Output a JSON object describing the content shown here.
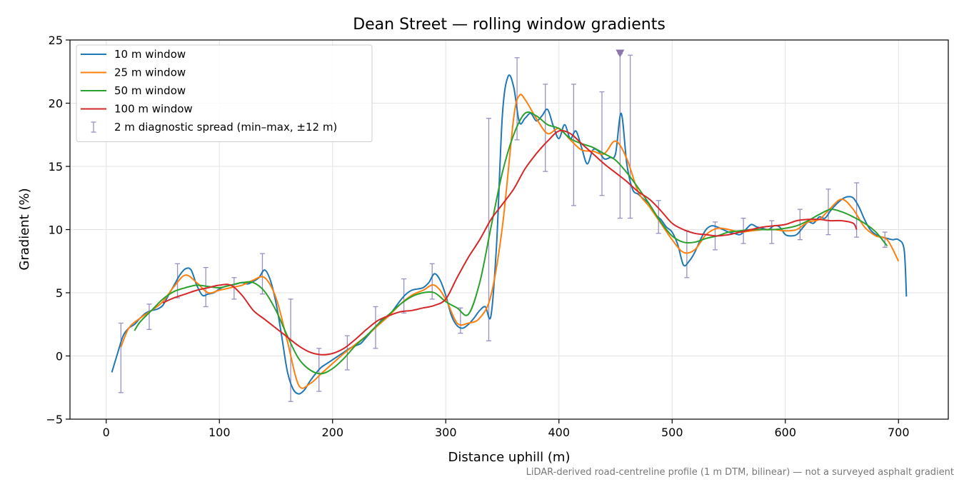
{
  "chart_data": {
    "type": "line",
    "title": "Dean Street — rolling window gradients",
    "xlabel": "Distance uphill (m)",
    "ylabel": "Gradient (%)",
    "xlim": [
      -32,
      744
    ],
    "ylim": [
      -5,
      25
    ],
    "xticks": [
      0,
      100,
      200,
      300,
      400,
      500,
      600,
      700
    ],
    "yticks": [
      -5,
      0,
      5,
      10,
      15,
      20,
      25
    ],
    "xtick_labels": [
      "0",
      "100",
      "200",
      "300",
      "400",
      "500",
      "600",
      "700"
    ],
    "ytick_labels": [
      "−5",
      "0",
      "5",
      "10",
      "15",
      "20",
      "25"
    ],
    "grid": true,
    "legend_position": "top-left",
    "footnote": "LiDAR-derived road-centreline profile (1 m DTM, bilinear) — not a surveyed asphalt gradient",
    "series": [
      {
        "name": "10 m window",
        "color": "#1f77b4",
        "x": [
          5,
          10,
          15,
          20,
          25,
          30,
          35,
          40,
          45,
          50,
          55,
          60,
          65,
          70,
          75,
          80,
          85,
          90,
          95,
          100,
          105,
          110,
          115,
          120,
          125,
          130,
          135,
          140,
          145,
          150,
          155,
          160,
          165,
          170,
          175,
          180,
          185,
          190,
          195,
          200,
          205,
          210,
          215,
          220,
          225,
          230,
          235,
          240,
          245,
          250,
          255,
          260,
          265,
          270,
          275,
          280,
          285,
          290,
          295,
          300,
          305,
          310,
          315,
          320,
          325,
          330,
          335,
          340,
          345,
          350,
          355,
          360,
          365,
          370,
          375,
          380,
          385,
          390,
          395,
          400,
          405,
          410,
          415,
          420,
          425,
          430,
          435,
          440,
          445,
          450,
          455,
          460,
          465,
          470,
          475,
          480,
          485,
          490,
          495,
          500,
          505,
          510,
          515,
          520,
          525,
          530,
          535,
          540,
          545,
          550,
          555,
          560,
          565,
          570,
          575,
          580,
          585,
          590,
          595,
          600,
          605,
          610,
          615,
          620,
          625,
          630,
          635,
          640,
          645,
          650,
          655,
          660,
          665,
          670,
          675,
          680,
          685,
          690,
          695,
          700,
          705,
          707
        ],
        "y": [
          -1.3,
          0.2,
          1.6,
          2.2,
          2.5,
          3.0,
          3.4,
          3.6,
          3.7,
          4.0,
          4.8,
          5.6,
          6.4,
          6.9,
          6.8,
          5.6,
          4.8,
          4.9,
          5.0,
          5.3,
          5.5,
          5.6,
          5.7,
          5.8,
          5.7,
          5.9,
          6.2,
          6.8,
          6.0,
          4.2,
          1.6,
          -1.2,
          -2.6,
          -3.0,
          -2.7,
          -2.0,
          -1.4,
          -0.9,
          -0.6,
          -0.3,
          0.0,
          0.3,
          0.6,
          0.8,
          1.0,
          1.5,
          2.0,
          2.5,
          3.0,
          3.2,
          3.8,
          4.4,
          4.9,
          5.2,
          5.3,
          5.4,
          5.8,
          6.5,
          6.0,
          4.8,
          3.2,
          2.4,
          2.2,
          2.5,
          3.0,
          3.6,
          3.9,
          3.2,
          9.0,
          19.0,
          22.1,
          21.3,
          18.5,
          18.8,
          19.2,
          18.6,
          19.0,
          19.5,
          18.2,
          17.2,
          18.3,
          17.2,
          17.8,
          16.5,
          15.2,
          16.3,
          16.2,
          15.6,
          15.7,
          16.0,
          19.2,
          15.2,
          13.2,
          12.8,
          12.4,
          12.0,
          11.2,
          10.8,
          10.2,
          9.8,
          8.8,
          7.2,
          7.5,
          8.2,
          9.2,
          10.0,
          10.3,
          10.2,
          10.0,
          9.8,
          9.7,
          9.6,
          10.0,
          10.4,
          10.2,
          10.1,
          10.0,
          10.3,
          10.2,
          9.6,
          9.5,
          9.6,
          10.1,
          10.6,
          10.5,
          11.0,
          10.9,
          11.5,
          12.0,
          12.4,
          12.6,
          12.5,
          11.8,
          10.8,
          10.0,
          9.6,
          9.4,
          9.3,
          9.2,
          9.2,
          8.4,
          4.7
        ]
      },
      {
        "name": "25 m window",
        "color": "#ff7f0e",
        "x": [
          13,
          20,
          30,
          40,
          50,
          60,
          70,
          80,
          90,
          100,
          110,
          120,
          130,
          140,
          150,
          160,
          170,
          180,
          190,
          200,
          210,
          220,
          230,
          240,
          250,
          260,
          270,
          280,
          290,
          300,
          310,
          320,
          330,
          340,
          350,
          360,
          365,
          370,
          380,
          390,
          400,
          410,
          420,
          430,
          440,
          450,
          460,
          470,
          480,
          490,
          500,
          510,
          520,
          530,
          540,
          550,
          560,
          570,
          580,
          590,
          600,
          610,
          620,
          630,
          640,
          650,
          660,
          670,
          680,
          690,
          700
        ],
        "y": [
          0.7,
          2.2,
          3.0,
          3.6,
          4.3,
          5.5,
          6.4,
          5.8,
          5.0,
          5.2,
          5.4,
          5.6,
          6.0,
          6.2,
          4.6,
          1.2,
          -2.3,
          -2.2,
          -1.4,
          -0.6,
          0.2,
          0.9,
          1.6,
          2.4,
          3.2,
          4.1,
          4.8,
          5.2,
          5.6,
          4.5,
          2.6,
          2.6,
          3.0,
          4.8,
          10.2,
          18.8,
          20.6,
          20.3,
          18.8,
          17.6,
          18.0,
          17.1,
          16.3,
          16.2,
          16.0,
          17.0,
          15.6,
          13.0,
          11.8,
          10.5,
          9.2,
          8.2,
          8.4,
          9.6,
          10.1,
          10.0,
          9.8,
          9.9,
          10.0,
          10.0,
          9.9,
          10.0,
          10.6,
          10.8,
          11.7,
          12.4,
          11.6,
          10.2,
          9.5,
          9.2,
          7.5
        ]
      },
      {
        "name": "50 m window",
        "color": "#2ca02c",
        "x": [
          25,
          30,
          40,
          50,
          60,
          70,
          80,
          90,
          100,
          110,
          120,
          130,
          140,
          150,
          160,
          170,
          180,
          190,
          200,
          210,
          220,
          230,
          240,
          250,
          260,
          270,
          280,
          290,
          300,
          310,
          320,
          330,
          340,
          350,
          360,
          370,
          380,
          390,
          400,
          410,
          420,
          430,
          440,
          450,
          460,
          470,
          480,
          490,
          500,
          510,
          520,
          530,
          540,
          550,
          560,
          570,
          580,
          590,
          600,
          610,
          620,
          630,
          640,
          650,
          660,
          670,
          680,
          690
        ],
        "y": [
          2.0,
          2.7,
          3.6,
          4.5,
          5.1,
          5.4,
          5.6,
          5.5,
          5.4,
          5.6,
          5.8,
          5.8,
          5.1,
          3.6,
          1.6,
          -0.2,
          -1.1,
          -1.4,
          -1.0,
          -0.2,
          0.8,
          1.6,
          2.5,
          3.3,
          4.1,
          4.7,
          5.0,
          5.0,
          4.3,
          3.8,
          3.3,
          5.8,
          10.2,
          14.5,
          17.5,
          19.2,
          19.0,
          18.3,
          18.0,
          17.2,
          16.8,
          16.5,
          16.0,
          15.5,
          14.5,
          13.3,
          12.0,
          10.6,
          9.5,
          9.0,
          9.0,
          9.3,
          9.5,
          9.8,
          9.9,
          10.0,
          10.0,
          10.0,
          10.1,
          10.3,
          10.7,
          11.2,
          11.6,
          11.4,
          11.0,
          10.5,
          9.8,
          8.7
        ]
      },
      {
        "name": "100 m window",
        "color": "#d62728",
        "x": [
          50,
          60,
          70,
          80,
          90,
          100,
          110,
          120,
          130,
          140,
          150,
          160,
          170,
          180,
          190,
          200,
          210,
          220,
          230,
          240,
          250,
          260,
          270,
          280,
          290,
          300,
          310,
          320,
          330,
          340,
          350,
          360,
          370,
          380,
          390,
          400,
          410,
          420,
          430,
          440,
          450,
          460,
          470,
          480,
          490,
          500,
          510,
          520,
          530,
          540,
          550,
          560,
          570,
          580,
          590,
          600,
          610,
          620,
          630,
          640,
          650,
          660,
          663
        ],
        "y": [
          4.2,
          4.6,
          4.9,
          5.2,
          5.4,
          5.6,
          5.6,
          4.8,
          3.6,
          2.9,
          2.2,
          1.5,
          0.8,
          0.3,
          0.1,
          0.2,
          0.6,
          1.3,
          2.1,
          2.8,
          3.2,
          3.5,
          3.6,
          3.8,
          4.0,
          4.5,
          6.2,
          7.8,
          9.2,
          10.8,
          12.0,
          13.2,
          14.8,
          16.0,
          17.0,
          17.8,
          17.6,
          16.8,
          16.0,
          15.2,
          14.5,
          13.8,
          13.0,
          12.4,
          11.5,
          10.5,
          10.0,
          9.7,
          9.6,
          9.5,
          9.6,
          9.8,
          10.0,
          10.2,
          10.3,
          10.4,
          10.7,
          10.8,
          10.8,
          10.7,
          10.7,
          10.5,
          10.0
        ]
      }
    ],
    "errorbars": {
      "name": "2 m diagnostic spread (min–max, ±12 m)",
      "color": "#9a8fc2",
      "points": [
        {
          "x": 13,
          "low": -2.9,
          "high": 2.6
        },
        {
          "x": 38,
          "low": 2.1,
          "high": 4.1
        },
        {
          "x": 63,
          "low": 4.6,
          "high": 7.3
        },
        {
          "x": 88,
          "low": 3.9,
          "high": 7.0
        },
        {
          "x": 113,
          "low": 4.5,
          "high": 6.2
        },
        {
          "x": 138,
          "low": 4.9,
          "high": 8.1
        },
        {
          "x": 163,
          "low": -3.6,
          "high": 4.5
        },
        {
          "x": 188,
          "low": -2.8,
          "high": 0.6
        },
        {
          "x": 213,
          "low": -1.1,
          "high": 1.6
        },
        {
          "x": 238,
          "low": 0.6,
          "high": 3.9
        },
        {
          "x": 263,
          "low": 3.4,
          "high": 6.1
        },
        {
          "x": 288,
          "low": 4.5,
          "high": 7.3
        },
        {
          "x": 313,
          "low": 1.8,
          "high": 3.8
        },
        {
          "x": 338,
          "low": 1.2,
          "high": 18.8
        },
        {
          "x": 363,
          "low": 17.1,
          "high": 23.6
        },
        {
          "x": 388,
          "low": 14.6,
          "high": 21.5
        },
        {
          "x": 413,
          "low": 11.9,
          "high": 21.5
        },
        {
          "x": 438,
          "low": 12.7,
          "high": 20.9
        },
        {
          "x": 454,
          "low": 10.9,
          "high": 23.9
        },
        {
          "x": 463,
          "low": 10.9,
          "high": 23.8
        },
        {
          "x": 488,
          "low": 9.7,
          "high": 12.3
        },
        {
          "x": 513,
          "low": 6.2,
          "high": 9.9
        },
        {
          "x": 538,
          "low": 8.4,
          "high": 10.6
        },
        {
          "x": 563,
          "low": 8.9,
          "high": 10.9
        },
        {
          "x": 588,
          "low": 8.9,
          "high": 10.7
        },
        {
          "x": 613,
          "low": 9.2,
          "high": 11.6
        },
        {
          "x": 638,
          "low": 9.6,
          "high": 13.2
        },
        {
          "x": 663,
          "low": 9.4,
          "high": 13.7
        },
        {
          "x": 688,
          "low": 8.6,
          "high": 9.8
        }
      ]
    },
    "marker": {
      "x": 454,
      "y": 23.9,
      "shape": "triangle-down",
      "color": "#8c76ab"
    }
  }
}
